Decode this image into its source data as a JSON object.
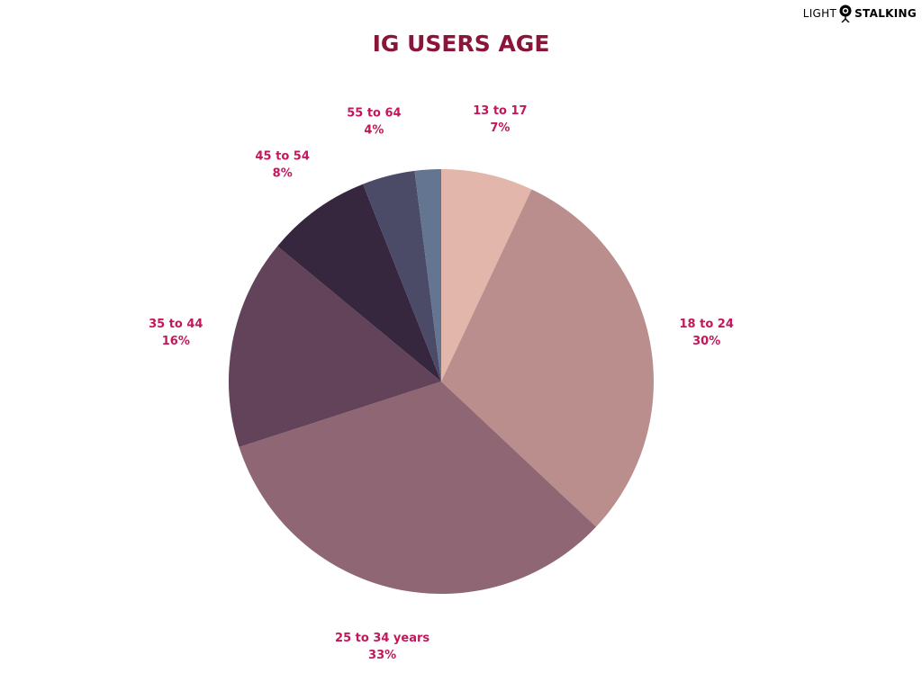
{
  "brand": {
    "part1": "LIGHT",
    "part2": "STALKING",
    "icon": "camera-icon"
  },
  "chart_data": {
    "type": "pie",
    "title": "IG USERS AGE",
    "label_color": "#c2185b",
    "title_color": "#8a1538",
    "slices": [
      {
        "name": "13 to 17",
        "label": "7%",
        "value": 7,
        "color": "#e2b6aa"
      },
      {
        "name": "18 to 24",
        "label": "30%",
        "value": 30,
        "color": "#b98e8d"
      },
      {
        "name": "25 to 34 years",
        "label": "33%",
        "value": 33,
        "color": "#8f6673"
      },
      {
        "name": "35 to 44",
        "label": "16%",
        "value": 16,
        "color": "#624359"
      },
      {
        "name": "45 to 54",
        "label": "8%",
        "value": 8,
        "color": "#36263e"
      },
      {
        "name": "55 to 64",
        "label": "4%",
        "value": 4,
        "color": "#4b4b68"
      },
      {
        "name": "",
        "label": "",
        "value": 2,
        "color": "#637590"
      }
    ]
  }
}
